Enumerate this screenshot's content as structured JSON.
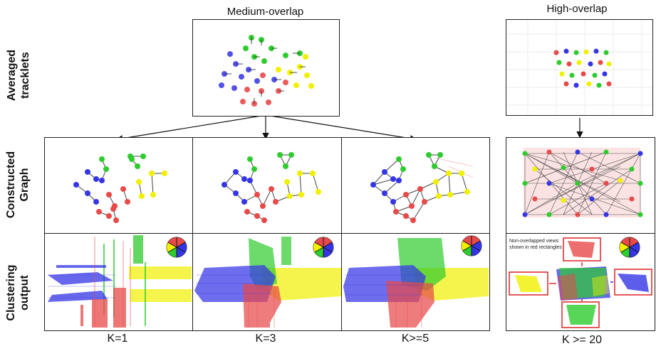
{
  "headers": {
    "medium": "Medium-overlap",
    "high": "High-overlap"
  },
  "rows": {
    "tracklets": "Averaged tracklets",
    "graph": "Constructed Graph",
    "clustering": "Clustering output"
  },
  "k_labels": [
    "K=1",
    "K=3",
    "K>=5",
    "K >= 20"
  ],
  "high_overlap_note": "Non-overlapped views shown in red rectangles",
  "colors": {
    "red": "#e84a4a",
    "green": "#2ecc2e",
    "blue": "#3535e6",
    "yellow": "#f0f000",
    "frame": "#d22"
  }
}
